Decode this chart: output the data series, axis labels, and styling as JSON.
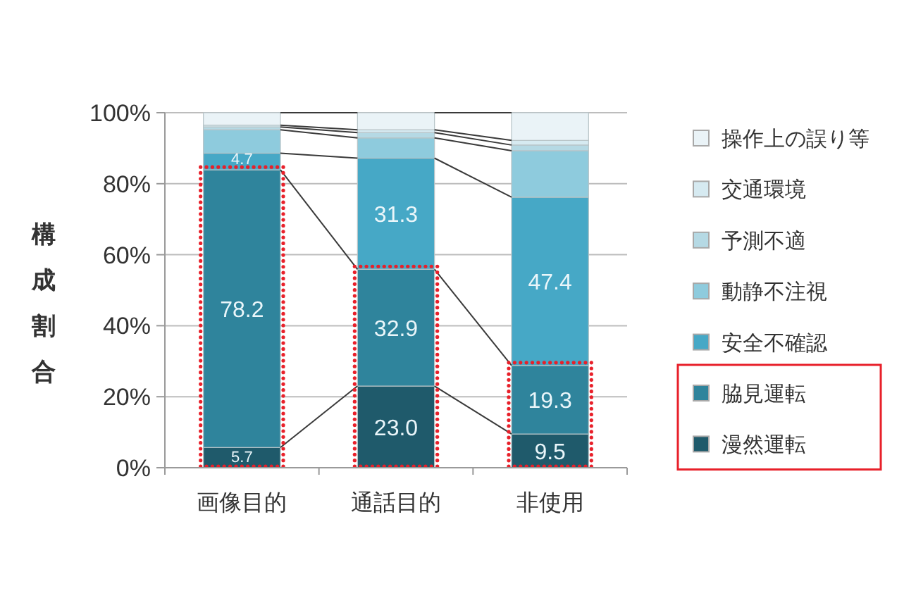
{
  "chart_data": {
    "type": "bar",
    "stacked": true,
    "ylabel": "構成割合",
    "categories": [
      "画像目的",
      "通話目的",
      "非使用"
    ],
    "series": [
      {
        "name": "漫然運転",
        "color": "#1f5a6b",
        "values": [
          5.7,
          23.0,
          9.5
        ],
        "value_labels": [
          "5.7",
          "23.0",
          "9.5"
        ]
      },
      {
        "name": "脇見運転",
        "color": "#2f849c",
        "values": [
          78.2,
          32.9,
          19.3
        ],
        "value_labels": [
          "78.2",
          "32.9",
          "19.3"
        ]
      },
      {
        "name": "安全不確認",
        "color": "#46a8c6",
        "values": [
          4.7,
          31.3,
          47.4
        ],
        "value_labels": [
          "4.7",
          "31.3",
          "47.4"
        ]
      },
      {
        "name": "動静不注視",
        "color": "#8ecbdd",
        "values": [
          6.6,
          5.7,
          13.1
        ]
      },
      {
        "name": "予測不適",
        "color": "#b5d9e4",
        "values": [
          0.8,
          1.5,
          1.6
        ]
      },
      {
        "name": "交通環境",
        "color": "#d6eaf1",
        "values": [
          0.5,
          0.8,
          1.3
        ]
      },
      {
        "name": "操作上の誤り等",
        "color": "#eaf3f7",
        "values": [
          3.5,
          4.8,
          7.8
        ]
      }
    ],
    "ylim": [
      0,
      100
    ],
    "yticks": [
      {
        "value": 0,
        "label": "0%"
      },
      {
        "value": 20,
        "label": "20%"
      },
      {
        "value": 40,
        "label": "40%"
      },
      {
        "value": 60,
        "label": "60%"
      },
      {
        "value": 80,
        "label": "80%"
      },
      {
        "value": 100,
        "label": "100%"
      }
    ],
    "grid": "y",
    "legend": "right"
  }
}
